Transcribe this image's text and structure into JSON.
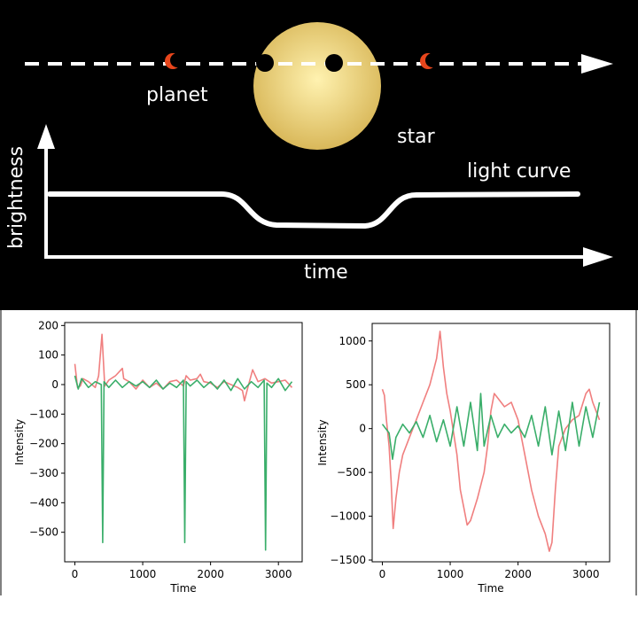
{
  "diagram": {
    "labels": {
      "planet": "planet",
      "star": "star",
      "light_curve": "light curve",
      "brightness": "brightness",
      "time": "time"
    },
    "colors": {
      "background": "#000000",
      "star_center": "#fff2b0",
      "star_edge": "#d9b85a",
      "planet_crescent": "#e8461c",
      "lines": "#ffffff"
    }
  },
  "chart_data": [
    {
      "type": "line",
      "xlabel": "Time",
      "ylabel": "Intensity",
      "xlim": [
        -150,
        3350
      ],
      "ylim": [
        -600,
        210
      ],
      "xticks": [
        0,
        1000,
        2000,
        3000
      ],
      "yticks": [
        200,
        100,
        0,
        -100,
        -200,
        -300,
        -400,
        -500
      ],
      "series_colors": [
        "#f07f7f",
        "#3aae6a"
      ],
      "series": [
        {
          "values": [
            [
              0,
              70
            ],
            [
              40,
              -10
            ],
            [
              80,
              -5
            ],
            [
              120,
              20
            ],
            [
              200,
              10
            ],
            [
              300,
              -10
            ],
            [
              350,
              30
            ],
            [
              400,
              170
            ],
            [
              440,
              -5
            ],
            [
              500,
              15
            ],
            [
              600,
              30
            ],
            [
              700,
              55
            ],
            [
              720,
              20
            ],
            [
              800,
              10
            ],
            [
              900,
              -15
            ],
            [
              1000,
              15
            ],
            [
              1100,
              -10
            ],
            [
              1200,
              5
            ],
            [
              1300,
              -15
            ],
            [
              1320,
              -10
            ],
            [
              1400,
              10
            ],
            [
              1500,
              15
            ],
            [
              1600,
              -5
            ],
            [
              1640,
              30
            ],
            [
              1700,
              15
            ],
            [
              1800,
              20
            ],
            [
              1850,
              35
            ],
            [
              1900,
              10
            ],
            [
              2000,
              5
            ],
            [
              2100,
              -10
            ],
            [
              2200,
              10
            ],
            [
              2300,
              0
            ],
            [
              2400,
              -10
            ],
            [
              2470,
              -20
            ],
            [
              2500,
              -55
            ],
            [
              2550,
              -10
            ],
            [
              2620,
              50
            ],
            [
              2700,
              10
            ],
            [
              2800,
              20
            ],
            [
              2900,
              5
            ],
            [
              3000,
              10
            ],
            [
              3100,
              15
            ],
            [
              3200,
              -10
            ]
          ]
        },
        {
          "values": [
            [
              0,
              30
            ],
            [
              50,
              -15
            ],
            [
              100,
              20
            ],
            [
              200,
              -10
            ],
            [
              300,
              10
            ],
            [
              390,
              0
            ],
            [
              410,
              -535
            ],
            [
              430,
              10
            ],
            [
              500,
              -10
            ],
            [
              600,
              15
            ],
            [
              700,
              -10
            ],
            [
              800,
              10
            ],
            [
              900,
              -5
            ],
            [
              1000,
              10
            ],
            [
              1100,
              -10
            ],
            [
              1200,
              15
            ],
            [
              1300,
              -15
            ],
            [
              1400,
              5
            ],
            [
              1500,
              -10
            ],
            [
              1600,
              15
            ],
            [
              1620,
              -535
            ],
            [
              1640,
              10
            ],
            [
              1700,
              -5
            ],
            [
              1800,
              15
            ],
            [
              1900,
              -10
            ],
            [
              2000,
              10
            ],
            [
              2100,
              -15
            ],
            [
              2200,
              15
            ],
            [
              2300,
              -20
            ],
            [
              2400,
              20
            ],
            [
              2500,
              -15
            ],
            [
              2600,
              10
            ],
            [
              2700,
              -10
            ],
            [
              2790,
              15
            ],
            [
              2810,
              -560
            ],
            [
              2830,
              5
            ],
            [
              2900,
              -10
            ],
            [
              3000,
              20
            ],
            [
              3100,
              -20
            ],
            [
              3200,
              10
            ]
          ]
        }
      ]
    },
    {
      "type": "line",
      "xlabel": "Time",
      "ylabel": "Intensity",
      "xlim": [
        -150,
        3350
      ],
      "ylim": [
        -1520,
        1200
      ],
      "xticks": [
        0,
        1000,
        2000,
        3000
      ],
      "yticks": [
        1000,
        500,
        0,
        -500,
        -1000,
        -1500
      ],
      "series_colors": [
        "#f07f7f",
        "#3aae6a"
      ],
      "series": [
        {
          "values": [
            [
              0,
              450
            ],
            [
              30,
              380
            ],
            [
              60,
              100
            ],
            [
              100,
              -200
            ],
            [
              130,
              -600
            ],
            [
              160,
              -1140
            ],
            [
              200,
              -800
            ],
            [
              250,
              -500
            ],
            [
              300,
              -300
            ],
            [
              400,
              -100
            ],
            [
              500,
              100
            ],
            [
              600,
              300
            ],
            [
              700,
              500
            ],
            [
              800,
              800
            ],
            [
              850,
              1110
            ],
            [
              900,
              700
            ],
            [
              950,
              400
            ],
            [
              1000,
              200
            ],
            [
              1100,
              -300
            ],
            [
              1150,
              -700
            ],
            [
              1200,
              -900
            ],
            [
              1250,
              -1100
            ],
            [
              1300,
              -1050
            ],
            [
              1400,
              -800
            ],
            [
              1500,
              -500
            ],
            [
              1550,
              -200
            ],
            [
              1600,
              200
            ],
            [
              1650,
              400
            ],
            [
              1700,
              350
            ],
            [
              1800,
              250
            ],
            [
              1900,
              300
            ],
            [
              2000,
              100
            ],
            [
              2100,
              -300
            ],
            [
              2200,
              -700
            ],
            [
              2300,
              -1000
            ],
            [
              2400,
              -1200
            ],
            [
              2460,
              -1400
            ],
            [
              2500,
              -1300
            ],
            [
              2550,
              -700
            ],
            [
              2600,
              -200
            ],
            [
              2700,
              0
            ],
            [
              2800,
              100
            ],
            [
              2900,
              150
            ],
            [
              3000,
              400
            ],
            [
              3050,
              450
            ],
            [
              3100,
              300
            ],
            [
              3200,
              100
            ]
          ]
        },
        {
          "values": [
            [
              0,
              50
            ],
            [
              100,
              -50
            ],
            [
              150,
              -350
            ],
            [
              200,
              -100
            ],
            [
              300,
              50
            ],
            [
              400,
              -50
            ],
            [
              500,
              80
            ],
            [
              600,
              -100
            ],
            [
              700,
              150
            ],
            [
              800,
              -150
            ],
            [
              900,
              100
            ],
            [
              1000,
              -200
            ],
            [
              1100,
              250
            ],
            [
              1200,
              -200
            ],
            [
              1300,
              300
            ],
            [
              1400,
              -250
            ],
            [
              1450,
              400
            ],
            [
              1500,
              -200
            ],
            [
              1600,
              150
            ],
            [
              1700,
              -100
            ],
            [
              1800,
              50
            ],
            [
              1900,
              -50
            ],
            [
              2000,
              30
            ],
            [
              2100,
              -100
            ],
            [
              2200,
              150
            ],
            [
              2300,
              -200
            ],
            [
              2400,
              250
            ],
            [
              2500,
              -300
            ],
            [
              2600,
              200
            ],
            [
              2700,
              -250
            ],
            [
              2800,
              300
            ],
            [
              2900,
              -200
            ],
            [
              3000,
              250
            ],
            [
              3100,
              -100
            ],
            [
              3200,
              300
            ]
          ]
        }
      ]
    }
  ]
}
